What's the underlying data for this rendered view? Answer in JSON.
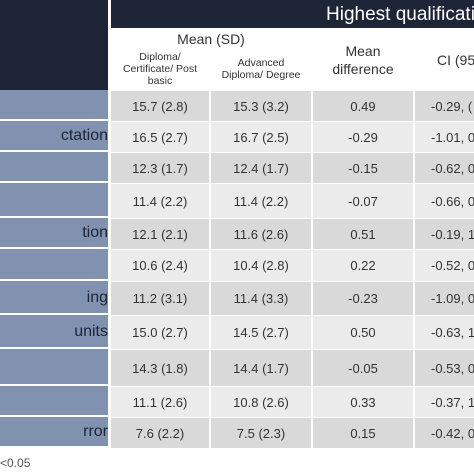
{
  "header": {
    "qualification_title": "Highest qualificatio",
    "mean_sd": "Mean (SD)",
    "col_diploma": "Diploma/ Certificate/ Post basic",
    "col_advanced": "Advanced Diploma/ Degree",
    "col_mean_diff": "Mean difference",
    "col_ci": "CI (95"
  },
  "rows": [
    {
      "label": "",
      "diploma": "15.7 (2.8)",
      "advanced": "15.3 (3.2)",
      "diff": "0.49",
      "ci": "-0.29, (",
      "shade": "gray"
    },
    {
      "label": "ctation",
      "diploma": "16.5 (2.7)",
      "advanced": "16.7 (2.5)",
      "diff": "-0.29",
      "ci": "-1.01, 0",
      "shade": "light"
    },
    {
      "label": "",
      "diploma": "12.3 (1.7)",
      "advanced": "12.4 (1.7)",
      "diff": "-0.15",
      "ci": "-0.62, 0",
      "shade": "gray"
    },
    {
      "label": "",
      "diploma": "11.4 (2.2)",
      "advanced": "11.4 (2.2)",
      "diff": "-0.07",
      "ci": "-0.66, 0",
      "shade": "light"
    },
    {
      "label": "tion",
      "diploma": "12.1 (2.1)",
      "advanced": "11.6 (2.6)",
      "diff": "0.51",
      "ci": "-0.19, 1",
      "shade": "gray"
    },
    {
      "label": "",
      "diploma": "10.6 (2.4)",
      "advanced": "10.4 (2.8)",
      "diff": "0.22",
      "ci": "-0.52, 0",
      "shade": "light"
    },
    {
      "label": "ing",
      "diploma": "11.2 (3.1)",
      "advanced": "11.4 (3.3)",
      "diff": "-0.23",
      "ci": "-1.09, 0",
      "shade": "gray"
    },
    {
      "label": "units",
      "diploma": "15.0 (2.7)",
      "advanced": "14.5 (2.7)",
      "diff": "0.50",
      "ci": "-0.63, 1",
      "shade": "light"
    },
    {
      "label": "",
      "diploma": "14.3 (1.8)",
      "advanced": "14.4 (1.7)",
      "diff": "-0.05",
      "ci": "-0.53, 0",
      "shade": "gray"
    },
    {
      "label": "",
      "diploma": "11.1 (2.6)",
      "advanced": "10.8 (2.6)",
      "diff": "0.33",
      "ci": "-0.37, 1",
      "shade": "light"
    },
    {
      "label": "rror",
      "diploma": "7.6 (2.2)",
      "advanced": "7.5 (2.3)",
      "diff": "0.15",
      "ci": "-0.42, 0",
      "shade": "gray"
    }
  ],
  "footnote": "<0.05"
}
